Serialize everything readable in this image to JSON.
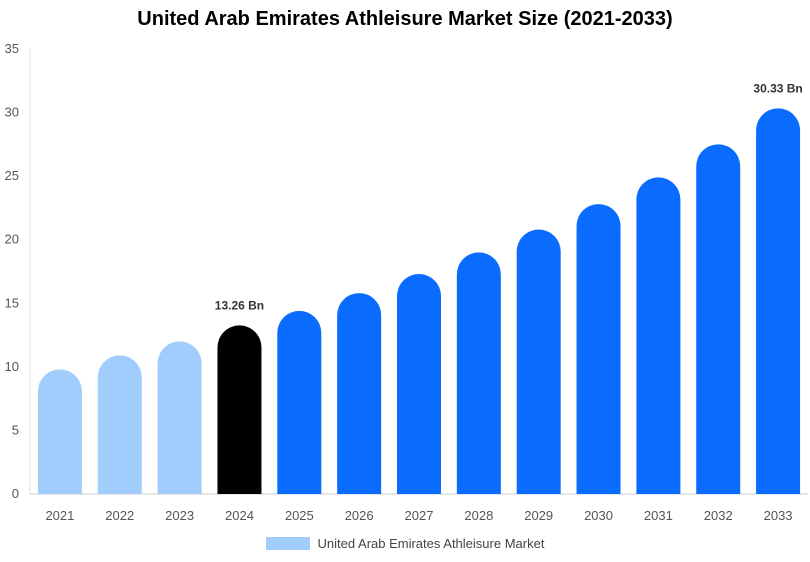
{
  "chart_data": {
    "type": "bar",
    "title": "United Arab Emirates Athleisure Market Size (2021-2033)",
    "categories": [
      "2021",
      "2022",
      "2023",
      "2024",
      "2025",
      "2026",
      "2027",
      "2028",
      "2029",
      "2030",
      "2031",
      "2032",
      "2033"
    ],
    "series": [
      {
        "name": "United Arab Emirates Athleisure Market",
        "values": [
          9.8,
          10.9,
          12.0,
          13.26,
          14.4,
          15.8,
          17.3,
          19.0,
          20.8,
          22.8,
          24.9,
          27.5,
          30.33
        ]
      }
    ],
    "ylim": [
      0,
      35
    ],
    "yticks": [
      0,
      5,
      10,
      15,
      20,
      25,
      30,
      35
    ],
    "data_labels": [
      {
        "category": "2024",
        "text": "13.26 Bn"
      },
      {
        "category": "2033",
        "text": "30.33 Bn"
      }
    ],
    "colors": {
      "historical": "#a0cdfb",
      "current": "#000000",
      "forecast": "#0a6cff"
    },
    "historical_years": [
      "2021",
      "2022",
      "2023"
    ],
    "current_year": "2024",
    "legend_position": "bottom",
    "grid": false
  },
  "legend": {
    "label": "United Arab Emirates Athleisure Market",
    "color": "#a0cdfb"
  }
}
